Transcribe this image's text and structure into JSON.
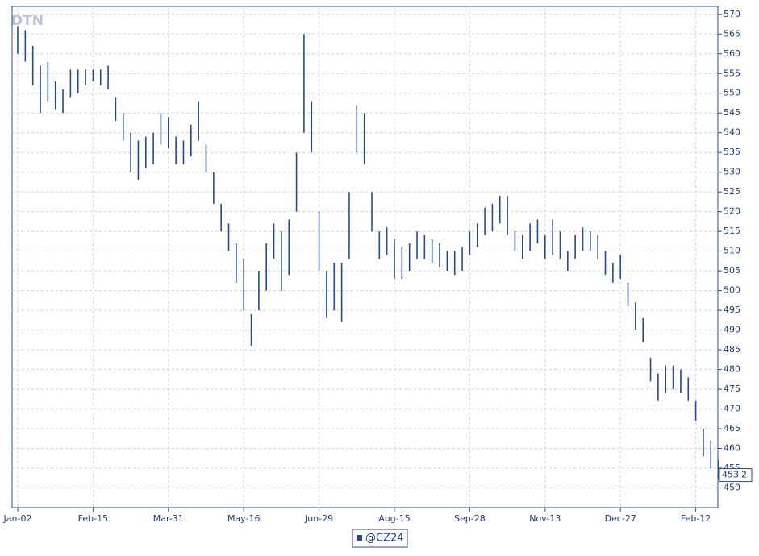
{
  "chart_data": {
    "type": "range-bar",
    "logo": "DTN",
    "categories": [
      "Jan-02",
      null,
      null,
      null,
      null,
      null,
      null,
      null,
      null,
      null,
      "Feb-15",
      null,
      null,
      null,
      null,
      null,
      null,
      null,
      null,
      null,
      "Mar-31",
      null,
      null,
      null,
      null,
      null,
      null,
      null,
      null,
      null,
      "May-16",
      null,
      null,
      null,
      null,
      null,
      null,
      null,
      null,
      null,
      "Jun-29",
      null,
      null,
      null,
      null,
      null,
      null,
      null,
      null,
      null,
      "Aug-15",
      null,
      null,
      null,
      null,
      null,
      null,
      null,
      null,
      null,
      "Sep-28",
      null,
      null,
      null,
      null,
      null,
      null,
      null,
      null,
      null,
      "Nov-13",
      null,
      null,
      null,
      null,
      null,
      null,
      null,
      null,
      null,
      "Dec-27",
      null,
      null,
      null,
      null,
      null,
      null,
      null,
      null,
      null,
      "Feb-12",
      null,
      null,
      null
    ],
    "series": [
      {
        "name": "@CZ24",
        "color": "#2b4a80",
        "high": [
          567,
          566,
          562,
          557,
          558,
          553,
          551,
          556,
          556,
          556,
          556,
          556,
          557,
          549,
          545,
          540,
          538,
          539,
          540,
          545,
          544,
          539,
          538,
          542,
          548,
          537,
          530,
          522,
          517,
          512,
          508,
          494,
          505,
          512,
          517,
          515,
          518,
          535,
          565,
          548,
          520,
          505,
          507,
          507,
          525,
          547,
          545,
          525,
          515,
          516,
          513,
          511,
          512,
          515,
          514,
          513,
          512,
          510,
          510,
          511,
          515,
          517,
          521,
          522,
          524,
          524,
          515,
          514,
          517,
          518,
          514,
          518,
          515,
          510,
          514,
          516,
          515,
          514,
          510,
          507,
          509,
          502,
          497,
          493,
          483,
          479,
          481,
          481,
          480,
          478,
          472,
          465,
          462,
          457
        ],
        "low": [
          560,
          558,
          552,
          545,
          548,
          546,
          545,
          549,
          550,
          552,
          553,
          552,
          551,
          543,
          538,
          530,
          528,
          531,
          532,
          537,
          536,
          532,
          532,
          534,
          538,
          530,
          522,
          515,
          510,
          502,
          495,
          486,
          495,
          500,
          508,
          500,
          504,
          520,
          540,
          535,
          505,
          493,
          495,
          492,
          508,
          535,
          532,
          515,
          508,
          509,
          503,
          503,
          505,
          508,
          508,
          507,
          506,
          505,
          504,
          505,
          509,
          511,
          514,
          515,
          517,
          514,
          510,
          508,
          510,
          512,
          508,
          509,
          508,
          505,
          508,
          510,
          510,
          508,
          504,
          502,
          503,
          496,
          490,
          487,
          477,
          472,
          474,
          475,
          474,
          472,
          467,
          458,
          455,
          452
        ]
      }
    ],
    "last_price": {
      "value": 453.25,
      "label": "453'2"
    },
    "ylim": [
      445,
      572
    ],
    "yticks": [
      450,
      455,
      460,
      465,
      470,
      475,
      480,
      485,
      490,
      495,
      500,
      505,
      510,
      515,
      520,
      525,
      530,
      535,
      540,
      545,
      550,
      555,
      560,
      565,
      570
    ],
    "grid": true
  }
}
